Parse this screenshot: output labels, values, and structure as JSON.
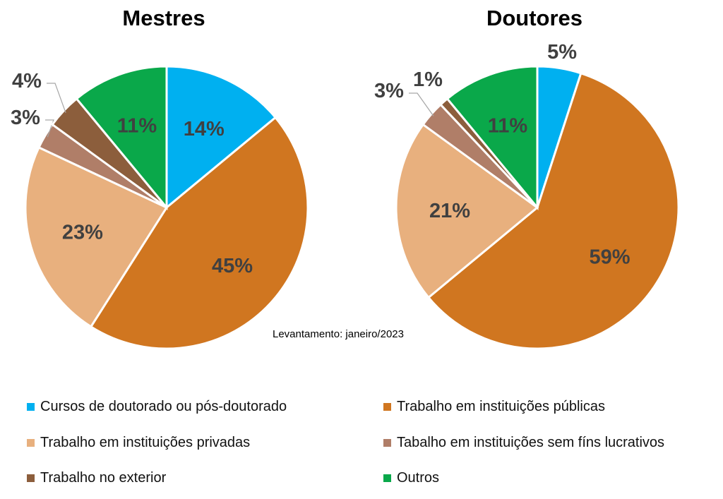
{
  "chart_data": [
    {
      "type": "pie",
      "title": "Mestres",
      "categories": [
        "Cursos de doutorado ou pós-doutorado",
        "Trabalho em instituições públicas",
        "Trabalho em instituições privadas",
        "Tabalho em instituições sem fíns lucrativos",
        "Trabalho no exterior",
        "Outros"
      ],
      "values": [
        14,
        45,
        23,
        3,
        4,
        11
      ],
      "labels": [
        "14%",
        "45%",
        "23%",
        "3%",
        "4%",
        "11%"
      ]
    },
    {
      "type": "pie",
      "title": "Doutores",
      "categories": [
        "Cursos de doutorado ou pós-doutorado",
        "Trabalho em instituições públicas",
        "Trabalho em instituições privadas",
        "Tabalho em instituições sem fíns lucrativos",
        "Trabalho no exterior",
        "Outros"
      ],
      "values": [
        5,
        59,
        21,
        3,
        1,
        11
      ],
      "labels": [
        "5%",
        "59%",
        "21%",
        "3%",
        "1%",
        "11%"
      ]
    }
  ],
  "colors": [
    "#00b0f0",
    "#d07620",
    "#e8b07e",
    "#b07e68",
    "#8c5e3c",
    "#0aa84a"
  ],
  "note": "Levantamento: janeiro/2023",
  "legend": [
    {
      "label": "Cursos de doutorado ou pós-doutorado",
      "color": "#00b0f0"
    },
    {
      "label": "Trabalho em instituições públicas",
      "color": "#d07620"
    },
    {
      "label": "Trabalho em instituições privadas",
      "color": "#e8b07e"
    },
    {
      "label": "Tabalho em instituições sem fíns lucrativos",
      "color": "#b07e68"
    },
    {
      "label": "Trabalho no exterior",
      "color": "#8c5e3c"
    },
    {
      "label": "Outros",
      "color": "#0aa84a"
    }
  ]
}
